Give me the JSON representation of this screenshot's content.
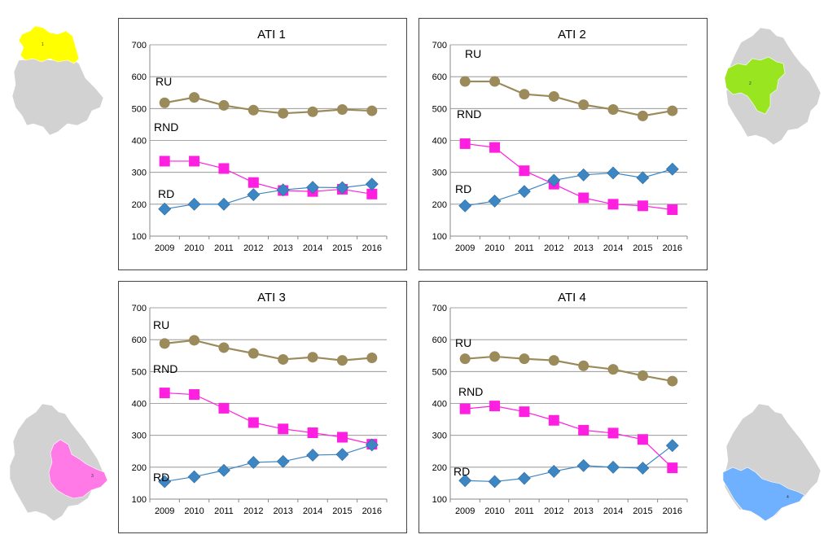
{
  "colors": {
    "RU": "#9b8a5a",
    "RND": "#ff1fe0",
    "RD": "#3d86c4",
    "grid": "#888888",
    "map_gray": "#d2d2d2",
    "map_highlight": [
      "#ffff00",
      "#99e51f",
      "#ff7ae6",
      "#6fb1ff"
    ]
  },
  "chart_data": [
    {
      "type": "line",
      "title": "ATI 1",
      "x": [
        "2009",
        "2010",
        "2011",
        "2012",
        "2013",
        "2014",
        "2015",
        "2016"
      ],
      "yticks": [
        "100",
        "200",
        "300",
        "400",
        "500",
        "600",
        "700"
      ],
      "ylim": [
        100,
        700
      ],
      "grid": true,
      "series": [
        {
          "name": "RU",
          "marker": "circle",
          "values": [
            518,
            535,
            510,
            495,
            485,
            490,
            497,
            493
          ]
        },
        {
          "name": "RND",
          "marker": "square",
          "values": [
            335,
            335,
            312,
            268,
            243,
            240,
            247,
            232
          ]
        },
        {
          "name": "RD",
          "marker": "diamond",
          "values": [
            185,
            200,
            200,
            230,
            245,
            253,
            252,
            263
          ]
        }
      ],
      "map_label": "1"
    },
    {
      "type": "line",
      "title": "ATI 2",
      "x": [
        "2009",
        "2010",
        "2011",
        "2012",
        "2013",
        "2014",
        "2015",
        "2016"
      ],
      "yticks": [
        "100",
        "200",
        "300",
        "400",
        "500",
        "600",
        "700"
      ],
      "ylim": [
        100,
        700
      ],
      "grid": true,
      "series": [
        {
          "name": "RU",
          "marker": "circle",
          "values": [
            585,
            585,
            545,
            538,
            512,
            497,
            477,
            493
          ]
        },
        {
          "name": "RND",
          "marker": "square",
          "values": [
            390,
            378,
            305,
            263,
            220,
            200,
            195,
            183
          ]
        },
        {
          "name": "RD",
          "marker": "diamond",
          "values": [
            195,
            210,
            240,
            275,
            292,
            298,
            283,
            310
          ]
        }
      ],
      "map_label": "2"
    },
    {
      "type": "line",
      "title": "ATI 3",
      "x": [
        "2009",
        "2010",
        "2011",
        "2012",
        "2013",
        "2014",
        "2015",
        "2016"
      ],
      "yticks": [
        "100",
        "200",
        "300",
        "400",
        "500",
        "600",
        "700"
      ],
      "ylim": [
        100,
        700
      ],
      "grid": true,
      "series": [
        {
          "name": "RU",
          "marker": "circle",
          "values": [
            588,
            598,
            575,
            557,
            538,
            545,
            535,
            543
          ]
        },
        {
          "name": "RND",
          "marker": "square",
          "values": [
            433,
            428,
            385,
            340,
            320,
            308,
            294,
            272
          ]
        },
        {
          "name": "RD",
          "marker": "diamond",
          "values": [
            155,
            170,
            190,
            215,
            218,
            238,
            240,
            270
          ]
        }
      ],
      "map_label": "3"
    },
    {
      "type": "line",
      "title": "ATI 4",
      "x": [
        "2009",
        "2010",
        "2011",
        "2012",
        "2013",
        "2014",
        "2015",
        "2016"
      ],
      "yticks": [
        "100",
        "200",
        "300",
        "400",
        "500",
        "600",
        "700"
      ],
      "ylim": [
        100,
        700
      ],
      "grid": true,
      "series": [
        {
          "name": "RU",
          "marker": "circle",
          "values": [
            540,
            547,
            540,
            535,
            518,
            507,
            487,
            470
          ]
        },
        {
          "name": "RND",
          "marker": "square",
          "values": [
            383,
            392,
            374,
            347,
            316,
            307,
            287,
            198
          ]
        },
        {
          "name": "RD",
          "marker": "diamond",
          "values": [
            158,
            155,
            165,
            187,
            205,
            200,
            197,
            268
          ]
        }
      ],
      "map_label": "4"
    }
  ]
}
